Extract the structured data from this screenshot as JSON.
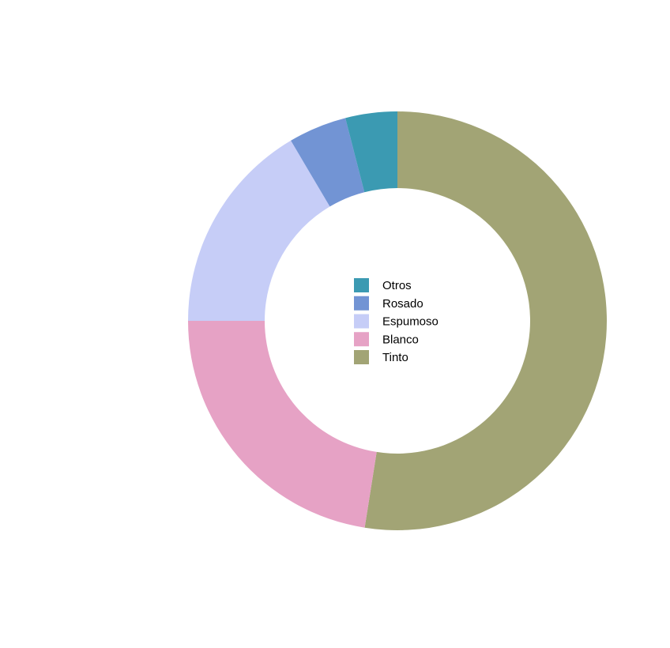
{
  "chart_data": {
    "type": "pie",
    "variant": "donut",
    "title": "",
    "categories": [
      "Tinto",
      "Blanco",
      "Espumoso",
      "Rosado",
      "Otros"
    ],
    "values": [
      52.5,
      22.5,
      16.5,
      4.5,
      4.0
    ],
    "colors": {
      "Tinto": "#a2a475",
      "Blanco": "#e6a2c5",
      "Espumoso": "#c6cdf7",
      "Rosado": "#7294d4",
      "Otros": "#3b9ab2"
    },
    "legend": {
      "placement": "center",
      "entries": [
        "Otros",
        "Rosado",
        "Espumoso",
        "Blanco",
        "Tinto"
      ]
    },
    "start_angle": "12 o'clock",
    "direction": "clockwise"
  }
}
